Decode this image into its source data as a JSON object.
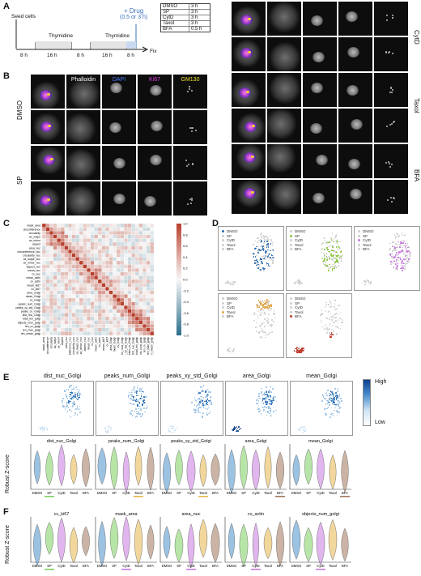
{
  "panels": {
    "a": "A",
    "b": "B",
    "c": "C",
    "d": "D",
    "e": "E",
    "f": "F"
  },
  "timeline": {
    "seed": "Seed cells",
    "thymidine1": "Thymidine",
    "thymidine2": "Thymidine",
    "intervals": [
      "8 h",
      "16 h",
      "8 h",
      "16 h",
      "8 h"
    ],
    "drug": "+ Drug",
    "drug_time": "(0.5 or 3 h)",
    "fix": "Fix",
    "table": [
      {
        "drug": "DMSO",
        "time": "3 h"
      },
      {
        "drug": "SP",
        "time": "3 h"
      },
      {
        "drug": "CytD",
        "time": "3 h"
      },
      {
        "drug": "Taxol",
        "time": "3 h"
      },
      {
        "drug": "BFA",
        "time": "0.5 h"
      }
    ]
  },
  "microscopy": {
    "channels": [
      "Phalloidin",
      "DAPI",
      "Ki67",
      "GM130"
    ],
    "channel_colors": [
      "#ffffff",
      "#4a7cff",
      "#e23ee2",
      "#f0e030"
    ],
    "left_rows": [
      "DMSO",
      "SP"
    ],
    "right_rows": [
      "CytD",
      "Taxol",
      "BFA"
    ]
  },
  "heatmap": {
    "features": [
      "mask_area",
      "circumference",
      "circularity",
      "ax_major",
      "ax_minor",
      "aspect",
      "area_nuc",
      "circumference_nuc",
      "circularity_nuc",
      "ax_major_nuc",
      "ax_minor_nuc",
      "aspect_nuc",
      "mean_nuc",
      "cv_nuc",
      "mean_actin",
      "cv_actin",
      "mean_ki67",
      "cv_ki67",
      "area_Golgi",
      "mean_Golgi",
      "cv_Golgi",
      "peaks_num_Golgi",
      "peaks_xy_std_Golgi",
      "peaks_cv_Golgi",
      "dist_nuc_Golgi",
      "total_len_golgi",
      "objects_num_golgi",
      "len_cv_golgi",
      "len_max_golgi",
      "len_mean_golgi"
    ],
    "colorbar_ticks": [
      "1.0",
      "0.8",
      "0.6",
      "0.4",
      "0.2",
      "0.0",
      "-0.2",
      "-0.4",
      "-0.6",
      "-0.8",
      "-1.0"
    ]
  },
  "umap": {
    "legend": [
      "DMSO",
      "SP",
      "CytD",
      "Taxol",
      "BFA"
    ],
    "colors": {
      "DMSO": "#2a6fb4",
      "SP": "#8cc63f",
      "CytD": "#c879e0",
      "Taxol": "#e0a84a",
      "BFA": "#c0392b"
    }
  },
  "panel_e": {
    "features": [
      "dist_nuc_Golgi",
      "peaks_num_Golgi",
      "peaks_xy_std_Golgi",
      "area_Golgi",
      "mean_Golgi"
    ],
    "colorbar_high": "High",
    "colorbar_low": "Low",
    "ylabel": "Robust Z-score",
    "xticks": [
      "DMSO",
      "SP",
      "CytD",
      "Taxol",
      "BFA"
    ]
  },
  "panel_f": {
    "features": [
      "cv_ki67",
      "mask_area",
      "area_nuc",
      "cv_actin",
      "objects_num_golgi"
    ],
    "ylabel": "Robust Z-score",
    "xticks": [
      "DMSO",
      "SP",
      "CytD",
      "Taxol",
      "BFA"
    ]
  }
}
